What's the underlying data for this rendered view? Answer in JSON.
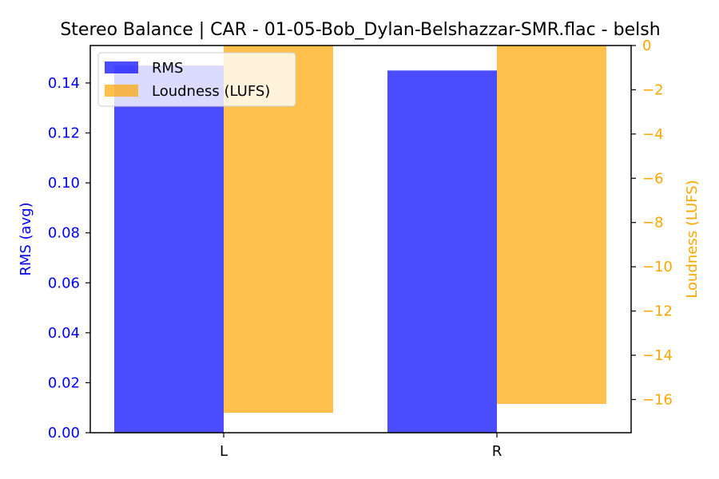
{
  "chart_data": {
    "type": "bar",
    "title": "Stereo Balance | CAR - 01-05-Bob_Dylan-Belshazzar-SMR.flac - belsh",
    "categories": [
      "L",
      "R"
    ],
    "series": [
      {
        "name": "RMS",
        "axis": "left",
        "color": "#0000ff",
        "values": [
          0.147,
          0.145
        ]
      },
      {
        "name": "Loudness (LUFS)",
        "axis": "right",
        "color": "#ffa500",
        "values": [
          -16.6,
          -16.2
        ]
      }
    ],
    "left_axis": {
      "label": "RMS (avg)",
      "color": "#0000ff",
      "ylim": [
        0,
        0.155
      ],
      "ticks": [
        0.0,
        0.02,
        0.04,
        0.06,
        0.08,
        0.1,
        0.12,
        0.14
      ],
      "tick_labels": [
        "0.00",
        "0.02",
        "0.04",
        "0.06",
        "0.08",
        "0.10",
        "0.12",
        "0.14"
      ]
    },
    "right_axis": {
      "label": "Loudness (LUFS)",
      "color": "#ffa500",
      "ylim": [
        -17.5,
        0
      ],
      "ticks": [
        0,
        -2,
        -4,
        -6,
        -8,
        -10,
        -12,
        -14,
        -16
      ],
      "tick_labels": [
        "0",
        "−2",
        "−4",
        "−6",
        "−8",
        "−10",
        "−12",
        "−14",
        "−16"
      ]
    },
    "legend": {
      "placement": "top-left",
      "entries": [
        "RMS",
        "Loudness (LUFS)"
      ]
    },
    "grid": false
  }
}
